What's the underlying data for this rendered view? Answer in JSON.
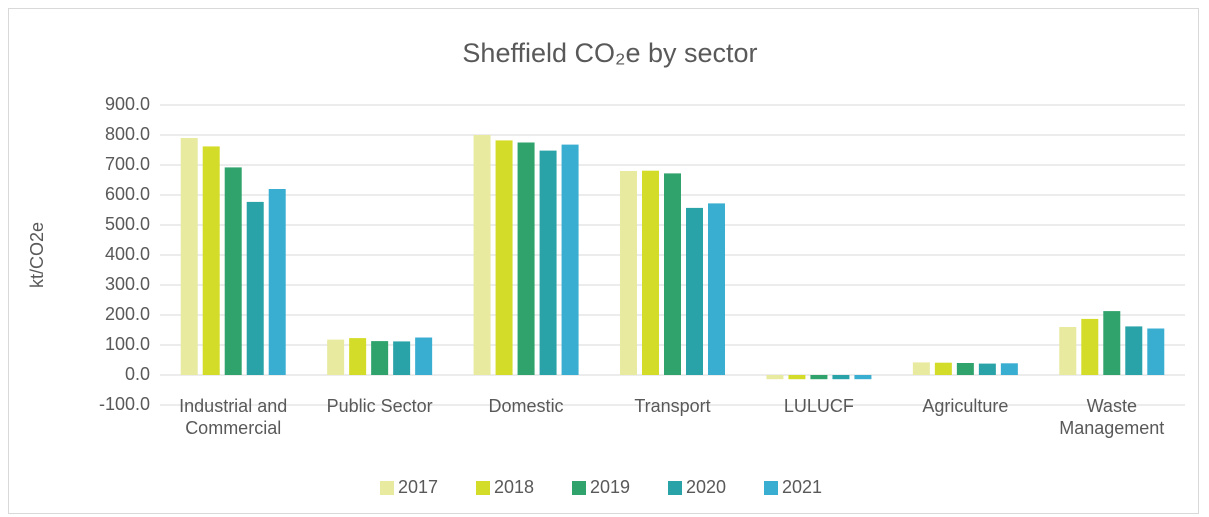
{
  "chart_data": {
    "type": "bar",
    "title": "Sheffield CO₂e by sector",
    "ylabel": "kt/CO2e",
    "categories": [
      "Industrial and Commercial",
      "Public Sector",
      "Domestic",
      "Transport",
      "LULUCF",
      "Agriculture",
      "Waste Management"
    ],
    "series": [
      {
        "name": "2017",
        "color": "#e8eaa0",
        "values": [
          790,
          118,
          800,
          680,
          -14,
          42,
          160
        ]
      },
      {
        "name": "2018",
        "color": "#d4dc2a",
        "values": [
          762,
          123,
          782,
          681,
          -14,
          41,
          187
        ]
      },
      {
        "name": "2019",
        "color": "#2fa36b",
        "values": [
          692,
          113,
          775,
          672,
          -14,
          40,
          213
        ]
      },
      {
        "name": "2020",
        "color": "#2aa3a8",
        "values": [
          577,
          112,
          748,
          557,
          -14,
          38,
          162
        ]
      },
      {
        "name": "2021",
        "color": "#3aaed0",
        "values": [
          620,
          125,
          768,
          572,
          -14,
          39,
          155
        ]
      }
    ],
    "ylim": [
      -100,
      900
    ],
    "yticks": [
      {
        "value": -100,
        "label": "-100.0"
      },
      {
        "value": 0,
        "label": "0.0"
      },
      {
        "value": 100,
        "label": "100.0"
      },
      {
        "value": 200,
        "label": "200.0"
      },
      {
        "value": 300,
        "label": "300.0"
      },
      {
        "value": 400,
        "label": "400.0"
      },
      {
        "value": 500,
        "label": "500.0"
      },
      {
        "value": 600,
        "label": "600.0"
      },
      {
        "value": 700,
        "label": "700.0"
      },
      {
        "value": 800,
        "label": "800.0"
      },
      {
        "value": 900,
        "label": "900.0"
      }
    ],
    "grid": true,
    "legend": "bottom"
  }
}
